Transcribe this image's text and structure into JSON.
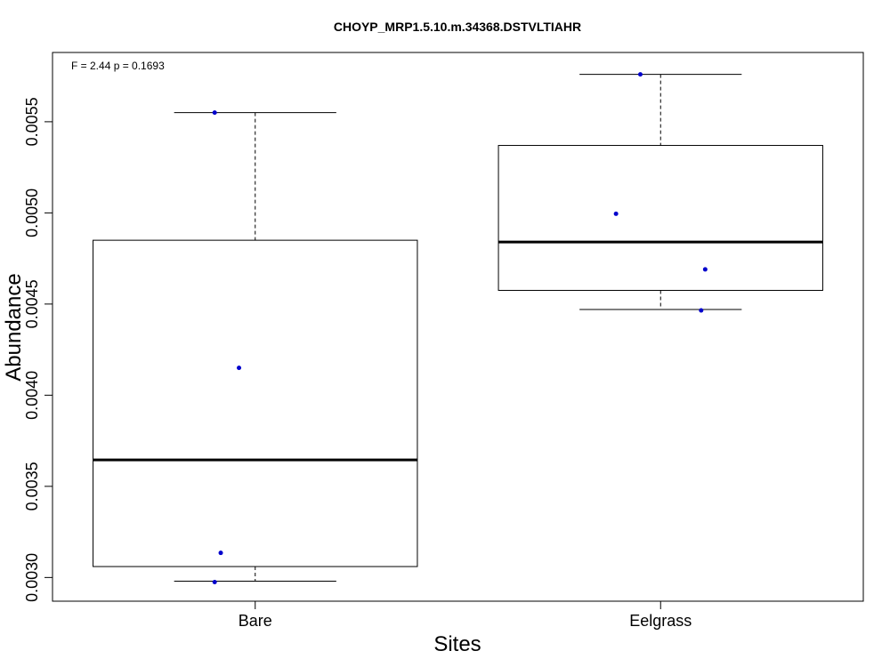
{
  "chart_data": {
    "type": "box",
    "title": "CHOYP_MRP1.5.10.m.34368.DSTVLTIAHR",
    "xlabel": "Sites",
    "ylabel": "Abundance",
    "annotation": "F = 2.44 p = 0.1693",
    "categories": [
      "Bare",
      "Eelgrass"
    ],
    "ylim": [
      0.00287,
      0.00588
    ],
    "yticks": [
      0.003,
      0.0035,
      0.004,
      0.0045,
      0.005,
      0.0055
    ],
    "ytick_labels": [
      "0.0030",
      "0.0035",
      "0.0040",
      "0.0045",
      "0.0050",
      "0.0055"
    ],
    "boxes": [
      {
        "category": "Bare",
        "min": 0.00298,
        "q1": 0.00306,
        "median": 0.003645,
        "q3": 0.00485,
        "max": 0.00555
      },
      {
        "category": "Eelgrass",
        "min": 0.00447,
        "q1": 0.004575,
        "median": 0.00484,
        "q3": 0.00537,
        "max": 0.00576
      }
    ],
    "points": [
      {
        "category": "Bare",
        "y": 0.00555,
        "jitter": -0.1
      },
      {
        "category": "Bare",
        "y": 0.00415,
        "jitter": -0.04
      },
      {
        "category": "Bare",
        "y": 0.003135,
        "jitter": -0.085
      },
      {
        "category": "Bare",
        "y": 0.002975,
        "jitter": -0.1
      },
      {
        "category": "Eelgrass",
        "y": 0.00576,
        "jitter": -0.05
      },
      {
        "category": "Eelgrass",
        "y": 0.004995,
        "jitter": -0.11
      },
      {
        "category": "Eelgrass",
        "y": 0.00469,
        "jitter": 0.11
      },
      {
        "category": "Eelgrass",
        "y": 0.004465,
        "jitter": 0.1
      }
    ],
    "point_color": "#0000cc",
    "grid": false,
    "legend": "none"
  }
}
